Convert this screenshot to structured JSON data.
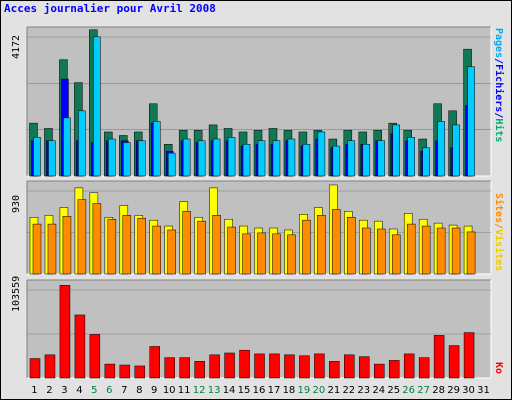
{
  "title": "Acces journalier pour Avril 2008",
  "colors": {
    "pages_bar": "#00ccff",
    "hits_bar": "#117755",
    "files_bar": "#0000ff",
    "visits_bar": "#ffff00",
    "sites_bar": "#ff8c00",
    "kb_bar": "#ff0000",
    "plot_bg": "#c0c0c0",
    "frame_bg": "#e2e2e2",
    "weekend": "#008040"
  },
  "right_labels": {
    "top": [
      {
        "text": "Pages",
        "color": "#00aaee"
      },
      {
        "text": "/",
        "color": "#0000ff"
      },
      {
        "text": "Fichiers",
        "color": "#0000ff"
      },
      {
        "text": "/",
        "color": "#0000ff"
      },
      {
        "text": "Hits",
        "color": "#00aa66"
      }
    ],
    "middle": [
      {
        "text": "Sites",
        "color": "#ff8c00"
      },
      {
        "text": "/",
        "color": "#ff8c00"
      },
      {
        "text": "Visites",
        "color": "#eecc00"
      }
    ],
    "bottom": [
      {
        "text": "Ko",
        "color": "#ff0000"
      }
    ]
  },
  "chart_data": [
    {
      "type": "bar",
      "name": "hits-files-pages",
      "ymax_label": "4172",
      "ylim": [
        0,
        4172
      ],
      "categories": [
        "1",
        "2",
        "3",
        "4",
        "5",
        "6",
        "7",
        "8",
        "9",
        "10",
        "11",
        "12",
        "13",
        "14",
        "15",
        "16",
        "17",
        "18",
        "19",
        "20",
        "21",
        "22",
        "23",
        "24",
        "25",
        "26",
        "27",
        "28",
        "29",
        "30",
        "31"
      ],
      "weekend_days": [
        "5",
        "6",
        "12",
        "13",
        "19",
        "20",
        "26",
        "27"
      ],
      "series": [
        {
          "name": "Hits",
          "values": [
            1500,
            1350,
            3300,
            2650,
            4150,
            1250,
            1150,
            1250,
            2050,
            900,
            1300,
            1300,
            1450,
            1350,
            1250,
            1300,
            1350,
            1300,
            1250,
            1300,
            1050,
            1300,
            1250,
            1300,
            1500,
            1300,
            1050,
            2050,
            1850,
            3600,
            0
          ]
        },
        {
          "name": "Fichiers",
          "values": [
            1000,
            1000,
            2750,
            1000,
            950,
            1000,
            1000,
            1000,
            1500,
            700,
            1000,
            950,
            1000,
            1000,
            850,
            900,
            900,
            1000,
            850,
            1050,
            800,
            900,
            900,
            1000,
            1200,
            1000,
            700,
            1000,
            800,
            2000,
            0
          ]
        },
        {
          "name": "Pages",
          "values": [
            1100,
            1000,
            1650,
            1850,
            3950,
            1050,
            950,
            1000,
            1550,
            650,
            1050,
            1000,
            1050,
            1100,
            900,
            1000,
            1000,
            1050,
            900,
            1250,
            850,
            1000,
            900,
            1000,
            1450,
            1100,
            800,
            1550,
            1450,
            3100,
            0
          ]
        }
      ]
    },
    {
      "type": "bar",
      "name": "visits-sites",
      "ymax_label": "930",
      "ylim": [
        0,
        930
      ],
      "categories": [
        "1",
        "2",
        "3",
        "4",
        "5",
        "6",
        "7",
        "8",
        "9",
        "10",
        "11",
        "12",
        "13",
        "14",
        "15",
        "16",
        "17",
        "18",
        "19",
        "20",
        "21",
        "22",
        "23",
        "24",
        "25",
        "26",
        "27",
        "28",
        "29",
        "30",
        "31"
      ],
      "series": [
        {
          "name": "Visites",
          "values": [
            580,
            600,
            680,
            880,
            830,
            580,
            700,
            600,
            550,
            490,
            740,
            580,
            880,
            560,
            490,
            470,
            470,
            450,
            610,
            680,
            910,
            640,
            550,
            540,
            460,
            620,
            560,
            520,
            500,
            490,
            0
          ]
        },
        {
          "name": "Sites",
          "values": [
            510,
            510,
            590,
            760,
            720,
            560,
            600,
            570,
            490,
            450,
            640,
            540,
            600,
            480,
            410,
            420,
            410,
            400,
            550,
            600,
            660,
            580,
            470,
            460,
            400,
            510,
            490,
            470,
            470,
            430,
            0
          ]
        }
      ]
    },
    {
      "type": "bar",
      "name": "kb",
      "ymax_label": "103559",
      "ylim": [
        0,
        103559
      ],
      "categories": [
        "1",
        "2",
        "3",
        "4",
        "5",
        "6",
        "7",
        "8",
        "9",
        "10",
        "11",
        "12",
        "13",
        "14",
        "15",
        "16",
        "17",
        "18",
        "19",
        "20",
        "21",
        "22",
        "23",
        "24",
        "25",
        "26",
        "27",
        "28",
        "29",
        "30",
        "31"
      ],
      "series": [
        {
          "name": "Ko",
          "values": [
            21000,
            25000,
            100000,
            68000,
            47000,
            15000,
            14000,
            13000,
            34000,
            22000,
            22000,
            18000,
            25000,
            27000,
            30000,
            26000,
            26000,
            25000,
            24000,
            26000,
            18000,
            25000,
            23000,
            15000,
            19000,
            26000,
            22000,
            46000,
            35000,
            49000,
            0
          ]
        }
      ]
    }
  ]
}
